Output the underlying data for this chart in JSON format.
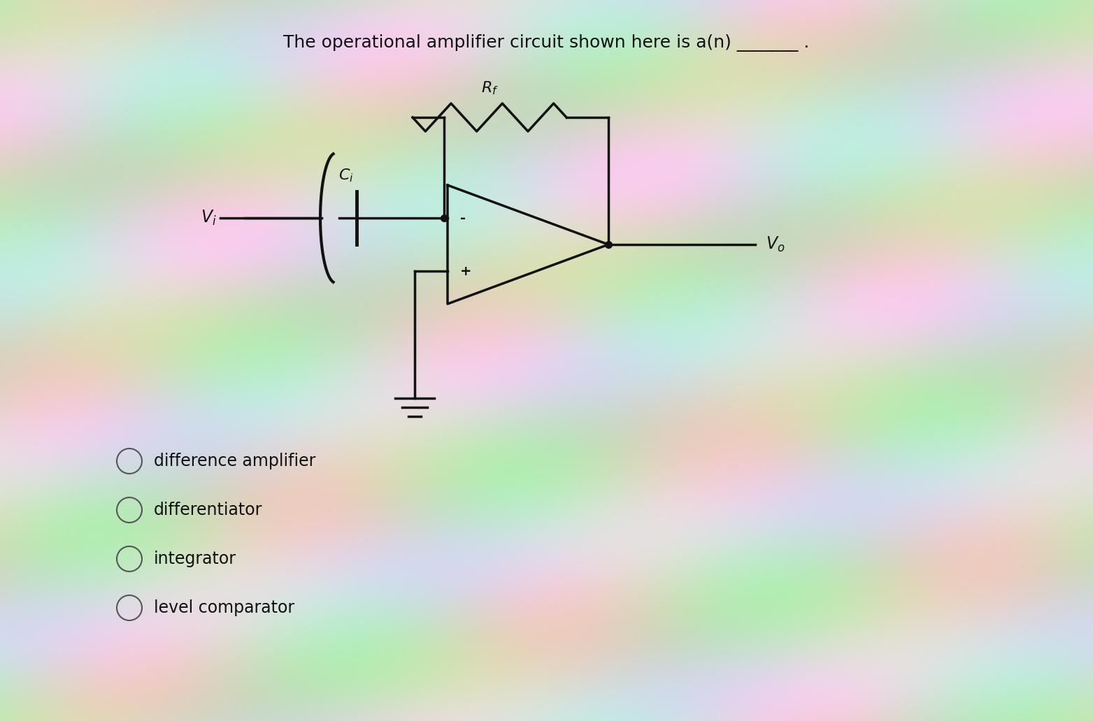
{
  "title_part1": "The operational amplifier circuit shown here is a(n) ",
  "title_underline": "_______ .",
  "title_fontsize": 17,
  "bg_base": "#c8ddb0",
  "circuit_color": "#111111",
  "options": [
    "difference amplifier",
    "differentiator",
    "integrator",
    "level comparator"
  ],
  "options_fontsize": 16,
  "Rf_label": "R_f",
  "Ci_label": "C_i",
  "Vi_label": "V_i",
  "Vo_label": "V_o",
  "minus_label": "-",
  "plus_label": "+"
}
